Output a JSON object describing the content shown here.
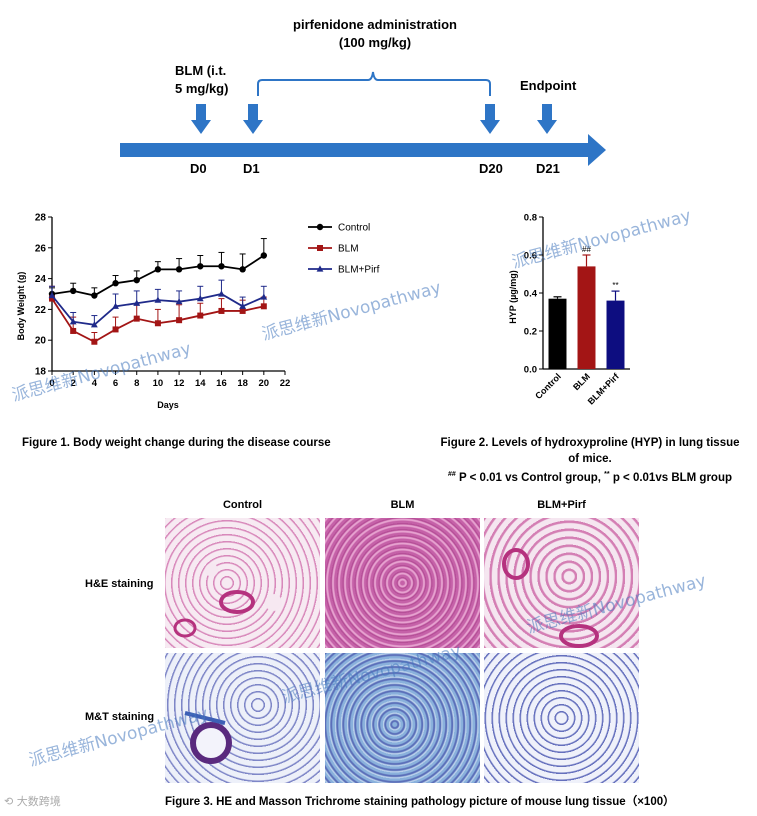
{
  "timeline": {
    "pirf_title_line1": "pirfenidone administration",
    "pirf_title_line2": "(100 mg/kg)",
    "blm_line1": "BLM (i.t.",
    "blm_line2": "5 mg/kg)",
    "endpoint": "Endpoint",
    "days": [
      "D0",
      "D1",
      "D20",
      "D21"
    ]
  },
  "chart_data": [
    {
      "type": "line",
      "ylabel": "Body Weight (g)",
      "xlabel": "Days",
      "xlim": [
        0,
        22
      ],
      "ylim": [
        18,
        28
      ],
      "x_ticks": [
        "0",
        "2",
        "4",
        "6",
        "8",
        "10",
        "12",
        "14",
        "16",
        "18",
        "20",
        "22"
      ],
      "y_ticks": [
        "18",
        "20",
        "22",
        "24",
        "26",
        "28"
      ],
      "x": [
        0,
        2,
        4,
        6,
        8,
        10,
        12,
        14,
        16,
        18,
        20
      ],
      "series": [
        {
          "name": "Control",
          "color": "#000000",
          "marker": "circle",
          "values": [
            23.0,
            23.2,
            22.9,
            23.7,
            23.9,
            24.6,
            24.6,
            24.8,
            24.8,
            24.6,
            25.5
          ],
          "errors": [
            0.4,
            0.5,
            0.5,
            0.5,
            0.6,
            0.5,
            0.7,
            0.7,
            0.9,
            1.0,
            1.1
          ]
        },
        {
          "name": "BLM",
          "color": "#a31515",
          "marker": "square",
          "values": [
            22.7,
            20.6,
            19.9,
            20.7,
            21.4,
            21.1,
            21.3,
            21.6,
            21.9,
            21.9,
            22.2
          ],
          "errors": [
            0.8,
            0.9,
            0.6,
            0.8,
            0.9,
            0.9,
            1.0,
            0.8,
            0.8,
            0.7,
            0.6
          ]
        },
        {
          "name": "BLM+Pirf",
          "color": "#1f2a8a",
          "marker": "triangle",
          "values": [
            22.9,
            21.2,
            21.0,
            22.2,
            22.4,
            22.6,
            22.5,
            22.7,
            23.0,
            22.2,
            22.8
          ],
          "errors": [
            0.6,
            0.6,
            0.6,
            0.8,
            0.8,
            0.7,
            0.7,
            0.8,
            0.9,
            0.6,
            0.7
          ]
        }
      ]
    },
    {
      "type": "bar",
      "ylabel": "HYP (µg/mg)",
      "ylim": [
        0,
        0.8
      ],
      "y_ticks": [
        "0.0",
        "0.2",
        "0.4",
        "0.6",
        "0.8"
      ],
      "categories": [
        "Control",
        "BLM",
        "BLM+Pirf"
      ],
      "values": [
        0.37,
        0.54,
        0.36
      ],
      "errors": [
        0.01,
        0.06,
        0.05
      ],
      "colors": [
        "#000000",
        "#a31515",
        "#0d0d80"
      ],
      "annotations": [
        "",
        "##",
        "**"
      ]
    }
  ],
  "captions": {
    "fig1": "Figure 1. Body weight change during the disease course",
    "fig2_line1": "Figure 2. Levels of hydroxyproline (HYP) in lung tissue",
    "fig2_line2": "of mice.",
    "fig2_sig_a": "##",
    "fig2_sig_b": " P < 0.01 vs Control group, ",
    "fig2_sig_c": "**",
    "fig2_sig_d": " p < 0.01vs BLM group",
    "fig3": "Figure 3. HE and Masson Trichrome staining pathology picture of mouse lung tissue（×100）"
  },
  "histology": {
    "columns": [
      "Control",
      "BLM",
      "BLM+Pirf"
    ],
    "rows": [
      "H&E staining",
      "M&T staining"
    ]
  },
  "watermarks": [
    "派思维新Novopathway",
    "派思维新Novopathway",
    "派思维新Novopathway",
    "派思维新Novopathway",
    "派思维新Novopathway",
    "派思维新Novopathway"
  ],
  "corner_logo": "大数跨境"
}
